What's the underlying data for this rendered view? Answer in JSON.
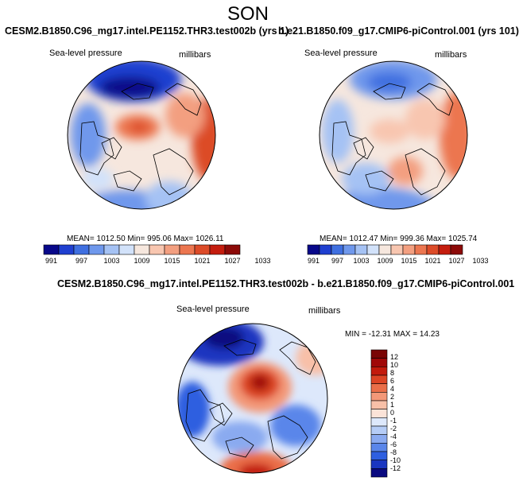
{
  "page": {
    "season": "SON"
  },
  "colors": {
    "abs_scale": [
      "#08088a",
      "#1f3fd0",
      "#3f6fe0",
      "#6f98ec",
      "#a5c2f4",
      "#d2e2fa",
      "#f6e7de",
      "#f8c6b0",
      "#f39f80",
      "#ec7650",
      "#dc4b28",
      "#c41d0e",
      "#8c0a08"
    ],
    "diff_scale": [
      "#0a0a80",
      "#1a36c0",
      "#2e5fe0",
      "#5a86ea",
      "#8aaaf0",
      "#b5ccf6",
      "#dde8fb",
      "#fbe3d8",
      "#f8c0a8",
      "#f39878",
      "#ea6e48",
      "#dc4424",
      "#c21a0c",
      "#a00808",
      "#7a0505"
    ],
    "coast": "#000000"
  },
  "panel_left": {
    "title": "CESM2.B1850.C96_mg17.intel.PE1152.THR3.test002b (yrs 1)",
    "field": "Sea-level pressure",
    "units": "millibars",
    "stats": {
      "mean": "1012.50",
      "min": "995.06",
      "max": "1026.11"
    },
    "stats_text": "MEAN= 1012.50  Min= 995.06  Max= 1026.11"
  },
  "panel_right": {
    "title": "b.e21.B1850.f09_g17.CMIP6-piControl.001 (yrs 101)",
    "field": "Sea-level pressure",
    "units": "millibars",
    "stats": {
      "mean": "1012.47",
      "min": "999.36",
      "max": "1025.74"
    },
    "stats_text": "MEAN= 1012.47  Min= 999.36  Max= 1025.74"
  },
  "panel_diff": {
    "title": "CESM2.B1850.C96_mg17.intel.PE1152.THR3.test002b - b.e21.B1850.f09_g17.CMIP6-piControl.001",
    "field": "Sea-level pressure",
    "units": "millibars",
    "stats": {
      "min": "-12.31",
      "max": "14.23"
    },
    "stats_text": "MIN = -12.31  MAX =  14.23"
  },
  "chart_data": [
    {
      "type": "heatmap",
      "title": "CESM2.B1850.C96_mg17.intel.PE1152.THR3.test002b (yrs 1)",
      "variable": "Sea-level pressure",
      "units": "millibars",
      "projection": "north-polar-stereographic",
      "colorbar_ticks": [
        991,
        997,
        1003,
        1009,
        1015,
        1021,
        1027,
        1033
      ],
      "mean": 1012.5,
      "min": 995.06,
      "max": 1026.11
    },
    {
      "type": "heatmap",
      "title": "b.e21.B1850.f09_g17.CMIP6-piControl.001 (yrs 101)",
      "variable": "Sea-level pressure",
      "units": "millibars",
      "projection": "north-polar-stereographic",
      "colorbar_ticks": [
        991,
        997,
        1003,
        1009,
        1015,
        1021,
        1027,
        1033
      ],
      "mean": 1012.47,
      "min": 999.36,
      "max": 1025.74
    },
    {
      "type": "heatmap",
      "title": "CESM2.B1850.C96_mg17.intel.PE1152.THR3.test002b - b.e21.B1850.f09_g17.CMIP6-piControl.001",
      "variable": "Sea-level pressure",
      "units": "millibars",
      "projection": "north-polar-stereographic",
      "colorbar_ticks": [
        12,
        10,
        8,
        6,
        4,
        2,
        1,
        0,
        -1,
        -2,
        -4,
        -6,
        -8,
        -10,
        -12
      ],
      "min": -12.31,
      "max": 14.23
    }
  ]
}
